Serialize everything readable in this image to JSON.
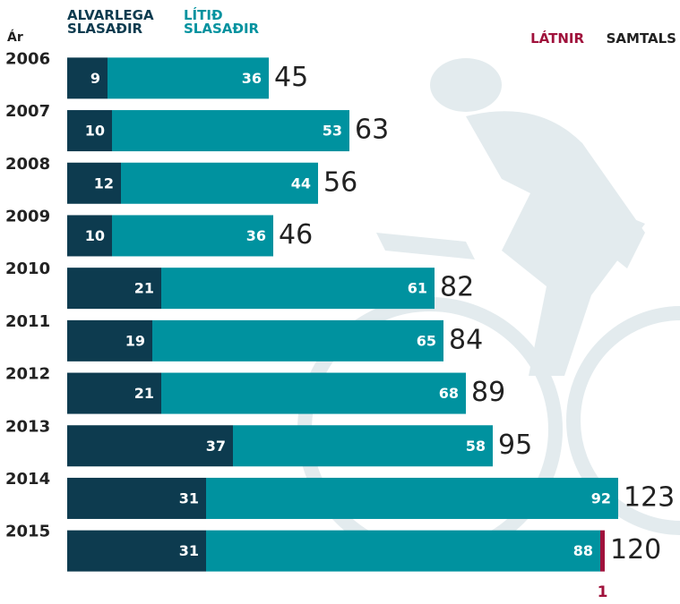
{
  "chart_data": {
    "type": "bar",
    "orientation": "horizontal",
    "stacked": true,
    "category_label": "Ár",
    "categories": [
      "2006",
      "2007",
      "2008",
      "2009",
      "2010",
      "2011",
      "2012",
      "2013",
      "2014",
      "2015"
    ],
    "series": [
      {
        "name": "ALVARLEGA SLASAÐIR",
        "color": "#0d3b4f",
        "values": [
          9,
          10,
          12,
          10,
          21,
          19,
          21,
          37,
          31,
          31
        ]
      },
      {
        "name": "LÍTIÐ SLASAÐIR",
        "color": "#00929f",
        "values": [
          36,
          53,
          44,
          36,
          61,
          65,
          68,
          58,
          92,
          88
        ]
      },
      {
        "name": "LÁTNIR",
        "color": "#a0123c",
        "values": [
          null,
          null,
          null,
          null,
          null,
          null,
          null,
          null,
          null,
          1
        ]
      }
    ],
    "totals": {
      "name": "SAMTALS",
      "color": "#222222",
      "values": [
        45,
        63,
        56,
        46,
        82,
        84,
        89,
        95,
        123,
        120
      ]
    },
    "xlim": [
      0,
      123
    ]
  }
}
